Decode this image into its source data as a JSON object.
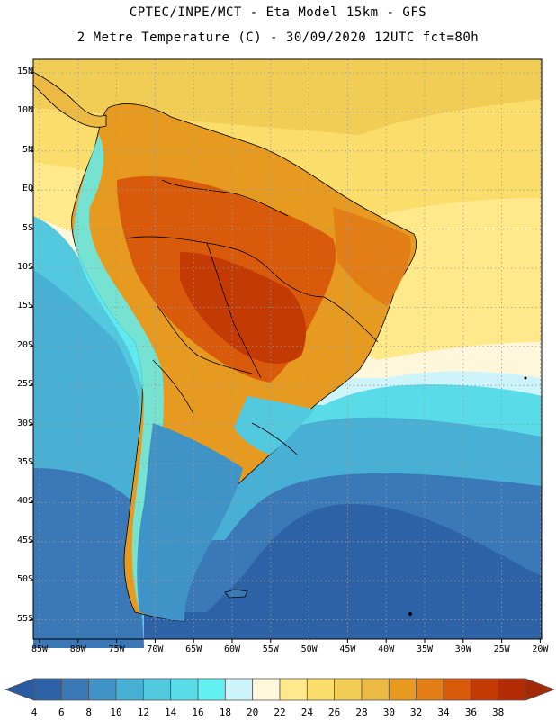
{
  "header": {
    "line1": "CPTEC/INPE/MCT -  Eta Model 15km - GFS",
    "line2": "2 Metre Temperature (C) - 30/09/2020 12UTC fct=80h"
  },
  "map": {
    "latitude_labels": [
      "15N",
      "10N",
      "5N",
      "EQ",
      "5S",
      "10S",
      "15S",
      "20S",
      "25S",
      "30S",
      "35S",
      "40S",
      "45S",
      "50S",
      "55S"
    ],
    "longitude_labels": [
      "85W",
      "80W",
      "75W",
      "70W",
      "65W",
      "60W",
      "55W",
      "50W",
      "45W",
      "40W",
      "35W",
      "30W",
      "25W",
      "20W"
    ]
  },
  "colorbar": {
    "ticks": [
      "4",
      "6",
      "8",
      "10",
      "12",
      "14",
      "16",
      "18",
      "20",
      "22",
      "24",
      "26",
      "28",
      "30",
      "32",
      "34",
      "36",
      "38"
    ],
    "colors": [
      "#2d62a6",
      "#3a78b8",
      "#3f93c6",
      "#47b0d4",
      "#52c9de",
      "#5adbe8",
      "#62f0f2",
      "#cdf4fb",
      "#fff7dc",
      "#ffe98a",
      "#fadd6a",
      "#f2cd55",
      "#ecba43",
      "#e69a1f",
      "#e37e17",
      "#d95a0a",
      "#c43a04",
      "#b22b05"
    ],
    "low_arrow_color": "#2a5aa0",
    "high_arrow_color": "#a32a05"
  }
}
